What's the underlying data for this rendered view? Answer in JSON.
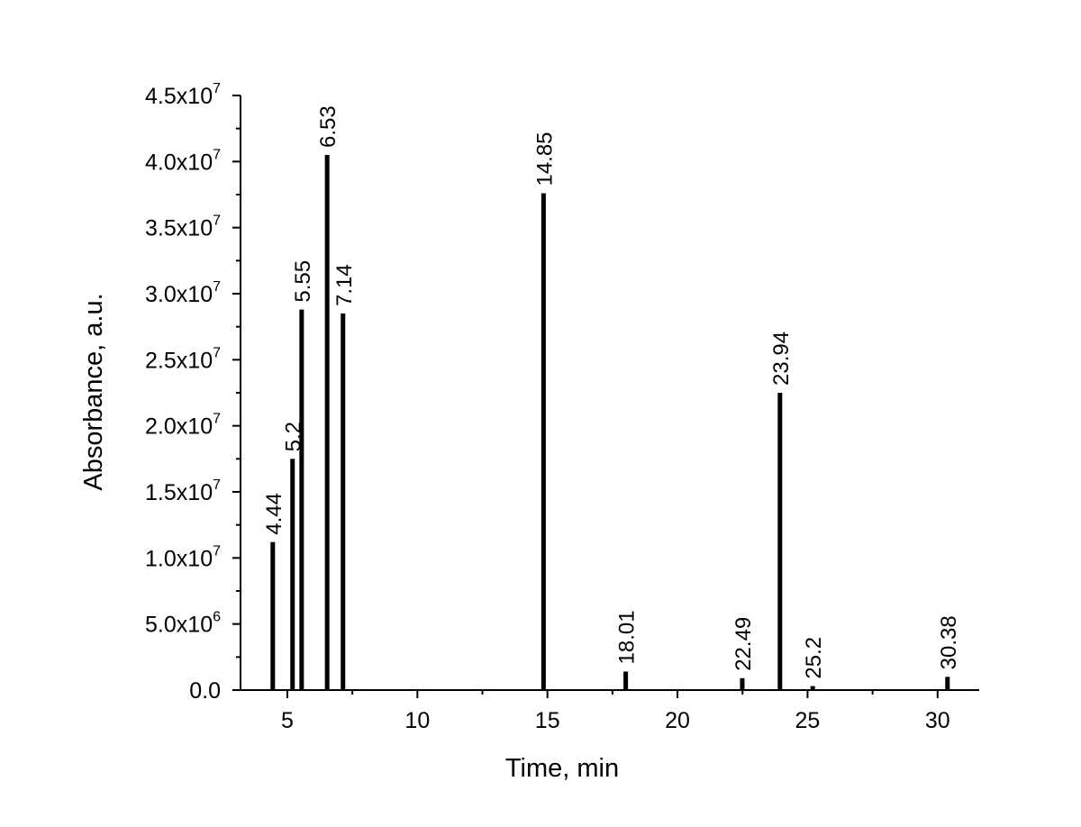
{
  "chart_data": {
    "type": "bar",
    "title": "",
    "xlabel": "Time, min",
    "ylabel": "Absorbance, a.u.",
    "xlim": [
      3.2,
      31.6
    ],
    "ylim": [
      0,
      45000000
    ],
    "grid": false,
    "x_ticks": [
      {
        "value": 5,
        "label": "5"
      },
      {
        "value": 10,
        "label": "10"
      },
      {
        "value": 15,
        "label": "15"
      },
      {
        "value": 20,
        "label": "20"
      },
      {
        "value": 25,
        "label": "25"
      },
      {
        "value": 30,
        "label": "30"
      }
    ],
    "y_ticks": [
      {
        "value": 0,
        "mantissa": "0.0",
        "exponent": ""
      },
      {
        "value": 5000000,
        "mantissa": "5.0x10",
        "exponent": "6"
      },
      {
        "value": 10000000,
        "mantissa": "1.0x10",
        "exponent": "7"
      },
      {
        "value": 15000000,
        "mantissa": "1.5x10",
        "exponent": "7"
      },
      {
        "value": 20000000,
        "mantissa": "2.0x10",
        "exponent": "7"
      },
      {
        "value": 25000000,
        "mantissa": "2.5x10",
        "exponent": "7"
      },
      {
        "value": 30000000,
        "mantissa": "3.0x10",
        "exponent": "7"
      },
      {
        "value": 35000000,
        "mantissa": "3.5x10",
        "exponent": "7"
      },
      {
        "value": 40000000,
        "mantissa": "4.0x10",
        "exponent": "7"
      },
      {
        "value": 45000000,
        "mantissa": "4.5x10",
        "exponent": "7"
      }
    ],
    "peaks": [
      {
        "x": 4.44,
        "y": 11200000,
        "label": "4.44"
      },
      {
        "x": 5.2,
        "y": 17500000,
        "label": "5.2"
      },
      {
        "x": 5.55,
        "y": 28800000,
        "label": "5.55"
      },
      {
        "x": 6.53,
        "y": 40500000,
        "label": "6.53"
      },
      {
        "x": 7.14,
        "y": 28500000,
        "label": "7.14"
      },
      {
        "x": 14.85,
        "y": 37600000,
        "label": "14.85"
      },
      {
        "x": 18.01,
        "y": 1400000,
        "label": "18.01"
      },
      {
        "x": 22.49,
        "y": 900000,
        "label": "22.49"
      },
      {
        "x": 23.94,
        "y": 22500000,
        "label": "23.94"
      },
      {
        "x": 25.2,
        "y": 300000,
        "label": "25.2"
      },
      {
        "x": 30.38,
        "y": 1000000,
        "label": "30.38"
      }
    ]
  }
}
